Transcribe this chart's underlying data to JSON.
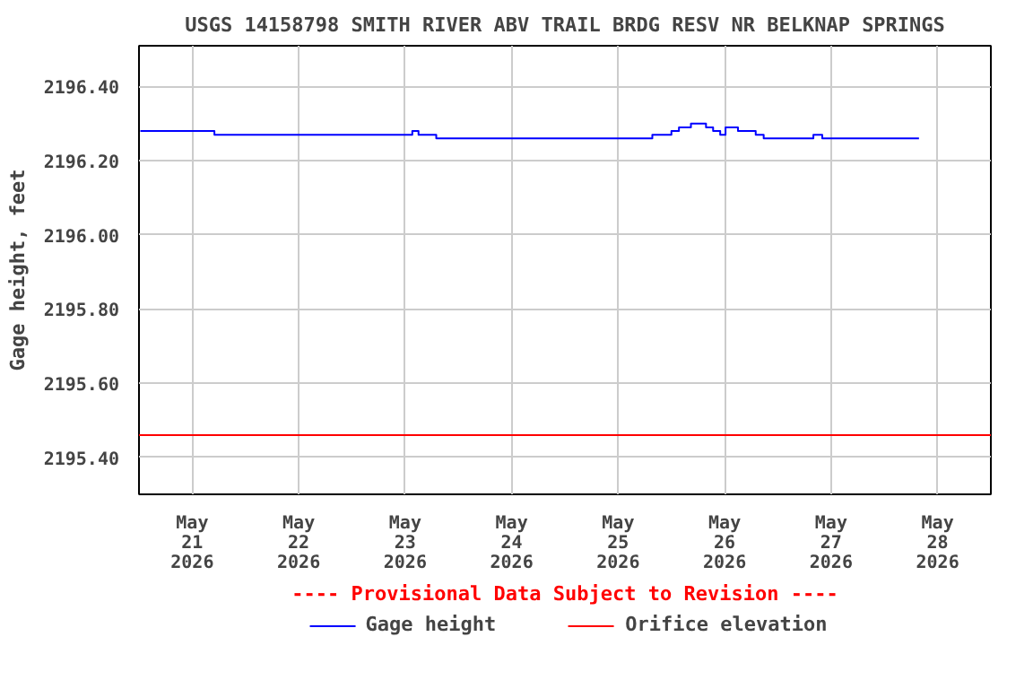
{
  "chart_data": {
    "type": "step",
    "title": "USGS 14158798 SMITH RIVER ABV TRAIL BRDG RESV NR BELKNAP SPRINGS",
    "ylabel": "Gage height, feet",
    "x": [
      "2026-05-20T12:18",
      "2026-05-21T05:00",
      "2026-05-22T11:00",
      "2026-05-23T01:36",
      "2026-05-23T03:00",
      "2026-05-23T07:00",
      "2026-05-24T04:36",
      "2026-05-24T23:36",
      "2026-05-25T07:42",
      "2026-05-25T09:42",
      "2026-05-25T12:00",
      "2026-05-25T13:42",
      "2026-05-25T16:24",
      "2026-05-25T19:48",
      "2026-05-25T21:24",
      "2026-05-25T23:00",
      "2026-05-26T00:12",
      "2026-05-26T03:00",
      "2026-05-26T07:00",
      "2026-05-26T08:48",
      "2026-05-26T20:00",
      "2026-05-26T22:00",
      "2026-05-27T04:00",
      "2026-05-27T19:48"
    ],
    "series": [
      {
        "name": "Gage height",
        "color": "#0000ff",
        "values": [
          2196.28,
          2196.27,
          2196.27,
          2196.28,
          2196.27,
          2196.26,
          2196.26,
          2196.26,
          2196.27,
          2196.27,
          2196.28,
          2196.29,
          2196.3,
          2196.29,
          2196.28,
          2196.27,
          2196.29,
          2196.28,
          2196.27,
          2196.26,
          2196.27,
          2196.26,
          2196.26,
          2196.26
        ]
      }
    ],
    "ref_lines": [
      {
        "axis": "y",
        "value": 2195.46,
        "label": "Orifice elevation",
        "color": "#ff0000"
      }
    ],
    "annotations": [
      "---- Provisional Data Subject to Revision ----"
    ],
    "xlim": [
      "2026-05-20T12:00",
      "2026-05-28T12:00"
    ],
    "xticks": [
      {
        "value": "2026-05-21",
        "label": "May\n21\n2026"
      },
      {
        "value": "2026-05-22",
        "label": "May\n22\n2026"
      },
      {
        "value": "2026-05-23",
        "label": "May\n23\n2026"
      },
      {
        "value": "2026-05-24",
        "label": "May\n24\n2026"
      },
      {
        "value": "2026-05-25",
        "label": "May\n25\n2026"
      },
      {
        "value": "2026-05-26",
        "label": "May\n26\n2026"
      },
      {
        "value": "2026-05-27",
        "label": "May\n27\n2026"
      },
      {
        "value": "2026-05-28",
        "label": "May\n28\n2026"
      }
    ],
    "ylim": [
      2195.3,
      2196.51
    ],
    "yticks": [
      {
        "value": 2195.4,
        "label": "2195.40"
      },
      {
        "value": 2195.6,
        "label": "2195.60"
      },
      {
        "value": 2195.8,
        "label": "2195.80"
      },
      {
        "value": 2196.0,
        "label": "2196.00"
      },
      {
        "value": 2196.2,
        "label": "2196.20"
      },
      {
        "value": 2196.4,
        "label": "2196.40"
      }
    ],
    "grid": true,
    "legend": "bottom"
  }
}
